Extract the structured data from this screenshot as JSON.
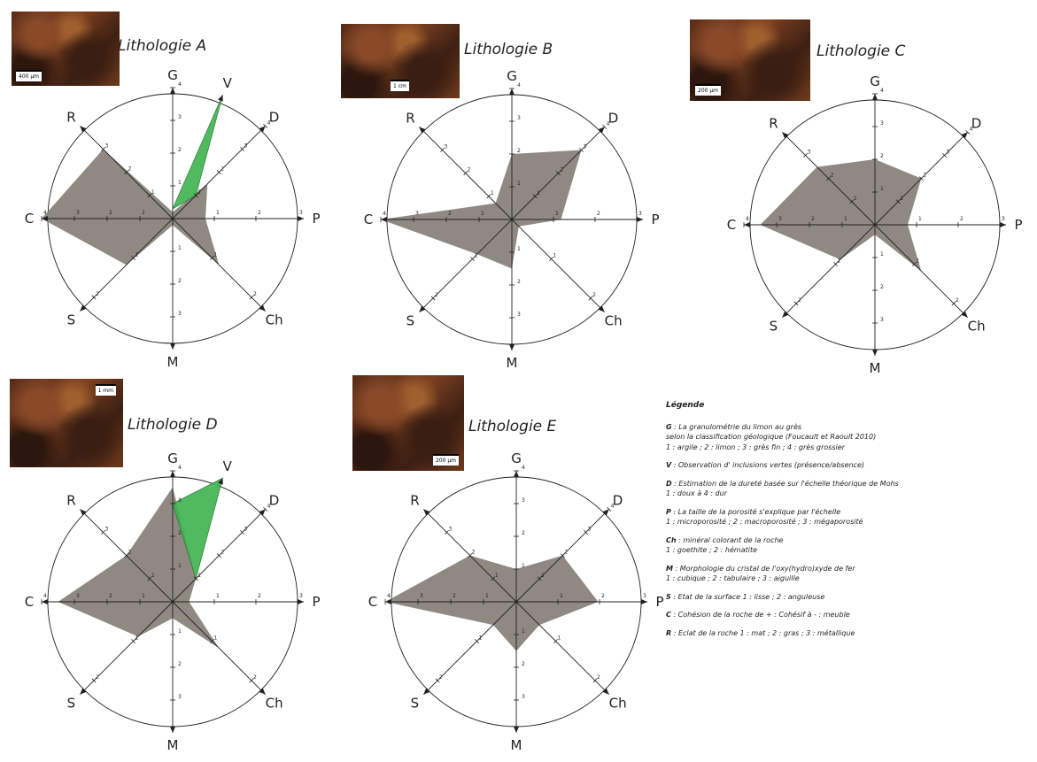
{
  "chart_data": [
    {
      "type": "radar",
      "title": "Lithologie A",
      "axes": [
        "G",
        "V",
        "D",
        "P",
        "Ch",
        "M",
        "S",
        "C",
        "R"
      ],
      "values": {
        "G": 0.2,
        "D": 1.5,
        "P": 1.0,
        "Ch": 2.0,
        "M": 0.2,
        "S": 2.0,
        "C": 4.0,
        "R": 3.0
      },
      "overlay_V": {
        "present": true,
        "value": 1
      },
      "tick_labels": {
        "G": [
          "1",
          "2",
          "3",
          "4"
        ],
        "P": [
          "1",
          "2",
          "3"
        ],
        "M": [
          "1",
          "2",
          "3"
        ],
        "D": [
          "1",
          "2",
          "3",
          "4"
        ],
        "Ch": [
          "1",
          "2"
        ],
        "S": [
          "1",
          "2"
        ],
        "C": [
          "1",
          "2",
          "3",
          "4"
        ],
        "R": [
          "1",
          "2",
          "3"
        ]
      }
    },
    {
      "type": "radar",
      "title": "Lithologie B",
      "axes": [
        "G",
        "D",
        "P",
        "Ch",
        "M",
        "S",
        "C",
        "R"
      ],
      "values": {
        "G": 2.0,
        "D": 3.0,
        "P": 1.5,
        "Ch": 0.3,
        "M": 1.5,
        "S": 1.5,
        "C": 4.0,
        "R": 0.7
      },
      "tick_labels": {
        "G": [
          "1",
          "2",
          "3",
          "4"
        ],
        "P": [
          "1",
          "2",
          "3"
        ],
        "M": [
          "1",
          "2",
          "3"
        ],
        "D": [
          "1",
          "2",
          "3",
          "4"
        ],
        "Ch": [
          "1",
          "2"
        ],
        "S": [
          "1",
          "2"
        ],
        "C": [
          "1",
          "2",
          "3",
          "4"
        ],
        "R": [
          "1",
          "2",
          "3"
        ]
      }
    },
    {
      "type": "radar",
      "title": "Lithologie C",
      "axes": [
        "G",
        "D",
        "P",
        "Ch",
        "M",
        "S",
        "C",
        "R"
      ],
      "values": {
        "G": 2.0,
        "D": 2.0,
        "P": 1.0,
        "Ch": 2.0,
        "M": 0.3,
        "S": 1.5,
        "C": 3.5,
        "R": 2.5
      },
      "tick_labels": {
        "G": [
          "1",
          "2",
          "3",
          "4"
        ],
        "P": [
          "1",
          "2",
          "3"
        ],
        "M": [
          "1",
          "2",
          "3"
        ],
        "D": [
          "1",
          "2",
          "3",
          "4"
        ],
        "Ch": [
          "1",
          "2"
        ],
        "S": [
          "1",
          "2"
        ],
        "C": [
          "1",
          "2",
          "3",
          "4"
        ],
        "R": [
          "1",
          "2",
          "3"
        ]
      }
    },
    {
      "type": "radar",
      "title": "Lithologie D",
      "axes": [
        "G",
        "V",
        "D",
        "P",
        "Ch",
        "M",
        "S",
        "C",
        "R"
      ],
      "values": {
        "G": 3.5,
        "D": 1.0,
        "P": 0.5,
        "Ch": 2.0,
        "M": 0.5,
        "S": 1.5,
        "C": 3.5,
        "R": 2.0
      },
      "overlay_V": {
        "present": true,
        "value": 1
      },
      "tick_labels": {
        "G": [
          "1",
          "2",
          "3",
          "4"
        ],
        "P": [
          "1",
          "2",
          "3"
        ],
        "M": [
          "1",
          "2",
          "3"
        ],
        "D": [
          "1",
          "2",
          "3",
          "4"
        ],
        "Ch": [
          "1",
          "2"
        ],
        "S": [
          "1",
          "2"
        ],
        "C": [
          "1",
          "2",
          "3",
          "4"
        ],
        "R": [
          "1",
          "2",
          "3"
        ]
      }
    },
    {
      "type": "radar",
      "title": "Lithologie E",
      "axes": [
        "G",
        "D",
        "P",
        "Ch",
        "M",
        "S",
        "C",
        "R"
      ],
      "values": {
        "G": 1.0,
        "D": 2.0,
        "P": 2.5,
        "Ch": 1.0,
        "M": 1.5,
        "S": 1.0,
        "C": 4.0,
        "R": 2.0
      },
      "tick_labels": {
        "G": [
          "1",
          "2",
          "3",
          "4"
        ],
        "P": [
          "1",
          "2",
          "3"
        ],
        "M": [
          "1",
          "2",
          "3"
        ],
        "D": [
          "1",
          "2",
          "3",
          "4"
        ],
        "Ch": [
          "1",
          "2"
        ],
        "S": [
          "1",
          "2"
        ],
        "C": [
          "1",
          "2",
          "3",
          "4"
        ],
        "R": [
          "1",
          "2",
          "3"
        ]
      }
    }
  ],
  "thumbnails": [
    {
      "scale_label": "400 µm"
    },
    {
      "scale_label": "1 cm"
    },
    {
      "scale_label": "200 µm"
    },
    {
      "scale_label": "1 mm"
    },
    {
      "scale_label": "200 µm"
    }
  ],
  "colors": {
    "polygon": "#8e8780",
    "overlay": "#3fb34f",
    "axis": "#231f20"
  },
  "legend": {
    "title": "Légende",
    "entries": [
      {
        "key": "G",
        "lines": [
          " : La granulométrie  du limon au grès",
          "selon la classification géologique (Foucault et Raoult 2010)",
          "1 : argile ; 2 : limon ; 3 : grès fin ; 4 : grès grossier"
        ]
      },
      {
        "key": "V",
        "lines": [
          " : Observation d' inclusions vertes (présence/absence)"
        ]
      },
      {
        "key": "D",
        "lines": [
          " : Estimation de la dureté basée sur l'échelle théorique de Mohs",
          "1 : doux à 4 : dur"
        ]
      },
      {
        "key": "P",
        "lines": [
          " : La taille de la porosité s'explique par l'échelle",
          "1 : microporosité ; 2 : macroporosité ; 3 : mégaporosité"
        ]
      },
      {
        "key": "Ch",
        "lines": [
          " : minéral colorant de la roche",
          "1 : goethite ; 2 : hématite"
        ]
      },
      {
        "key": "M",
        "lines": [
          " : Morphologie du cristal de l'oxy(hydro)xyde de fer",
          "1 : cubique ; 2 : tabulaire ; 3 : aiguille"
        ]
      },
      {
        "key": "S",
        "lines": [
          " : Etat de la surface 1 : lisse ; 2 : anguleuse"
        ]
      },
      {
        "key": "C",
        "lines": [
          " : Cohésion de la roche de + : Cohésif à - : meuble"
        ]
      },
      {
        "key": "R",
        "lines": [
          " : Eclat de la roche 1 : mat ; 2 : gras ; 3 : métallique"
        ]
      }
    ]
  }
}
